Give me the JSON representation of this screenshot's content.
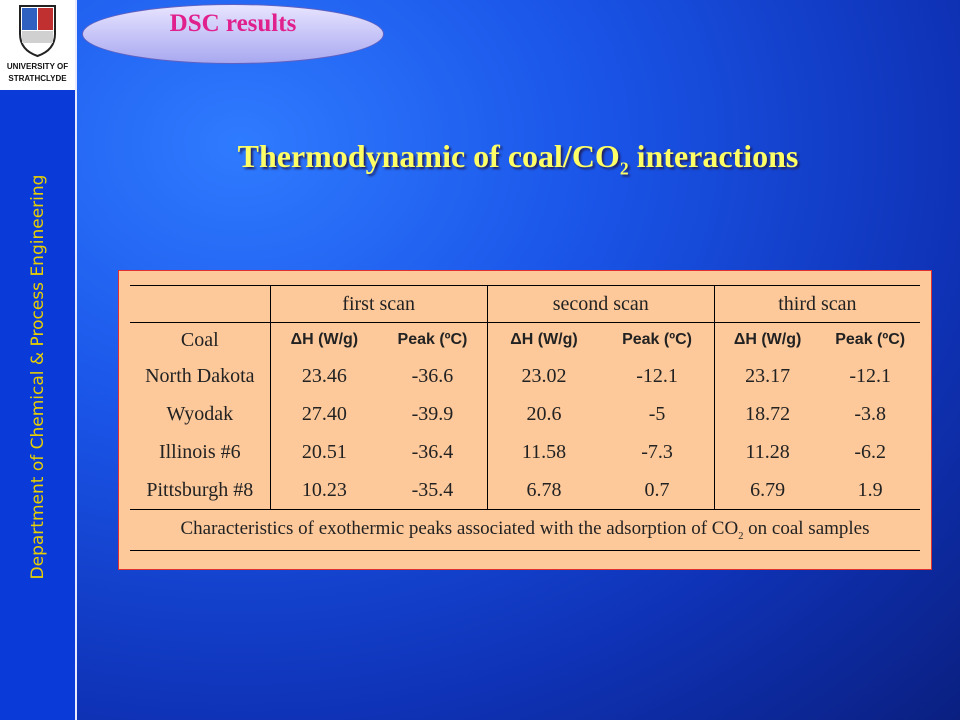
{
  "sidebar": {
    "logo": [
      "UNIVERSITY OF",
      "STRATHCLYDE"
    ],
    "department": "Department of Chemical & Process Engineering"
  },
  "header": {
    "badge": "DSC results",
    "title": [
      "Thermodynamic of coal/CO",
      "2",
      " interactions"
    ]
  },
  "table": {
    "groups": [
      "first scan",
      "second scan",
      "third scan"
    ],
    "columns": [
      "Coal",
      "ΔH (W/g)",
      "Peak (ºC)",
      "ΔH (W/g)",
      "Peak (ºC)",
      "ΔH (W/g)",
      "Peak (ºC)"
    ],
    "rows": [
      [
        "North Dakota",
        "23.46",
        "-36.6",
        "23.02",
        "-12.1",
        "23.17",
        "-12.1"
      ],
      [
        "Wyodak",
        "27.40",
        "-39.9",
        "20.6",
        "-5",
        "18.72",
        "-3.8"
      ],
      [
        "Illinois #6",
        "20.51",
        "-36.4",
        "11.58",
        "-7.3",
        "11.28",
        "-6.2"
      ],
      [
        "Pittsburgh #8",
        "10.23",
        "-35.4",
        "6.78",
        "0.7",
        "6.79",
        "1.9"
      ]
    ],
    "caption": [
      "Characteristics of exothermic peaks associated with the adsorption of CO",
      "2",
      " on coal samples"
    ]
  }
}
